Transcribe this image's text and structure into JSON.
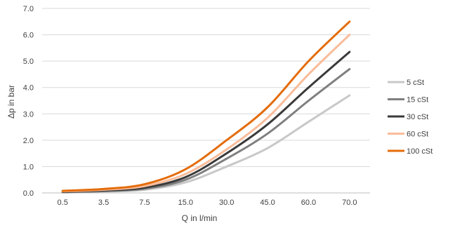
{
  "chart_data": {
    "type": "line",
    "title": "",
    "xlabel": "Q in l/min",
    "ylabel": "Δp in bar",
    "categories": [
      "0.5",
      "3.5",
      "7.5",
      "15.0",
      "30.0",
      "45.0",
      "60.0",
      "70.0"
    ],
    "y_ticks": [
      "0.0",
      "1.0",
      "2.0",
      "3.0",
      "4.0",
      "5.0",
      "6.0",
      "7.0"
    ],
    "ylim": [
      0,
      7
    ],
    "grid": "horizontal",
    "legend": "right",
    "series": [
      {
        "name": "5 cSt",
        "color": "#c8c8c8",
        "values": [
          0.02,
          0.05,
          0.12,
          0.4,
          1.0,
          1.7,
          2.7,
          3.7
        ]
      },
      {
        "name": "15 cSt",
        "color": "#7f7f7f",
        "values": [
          0.03,
          0.07,
          0.16,
          0.5,
          1.3,
          2.25,
          3.5,
          4.7
        ]
      },
      {
        "name": "30 cSt",
        "color": "#3a3a3a",
        "values": [
          0.04,
          0.09,
          0.2,
          0.6,
          1.5,
          2.6,
          4.0,
          5.35
        ]
      },
      {
        "name": "60 cSt",
        "color": "#f9bc9a",
        "values": [
          0.06,
          0.12,
          0.26,
          0.72,
          1.65,
          2.85,
          4.5,
          6.0
        ]
      },
      {
        "name": "100 cSt",
        "color": "#e46c0a",
        "values": [
          0.08,
          0.15,
          0.33,
          0.9,
          2.0,
          3.25,
          5.0,
          6.5
        ]
      }
    ]
  }
}
